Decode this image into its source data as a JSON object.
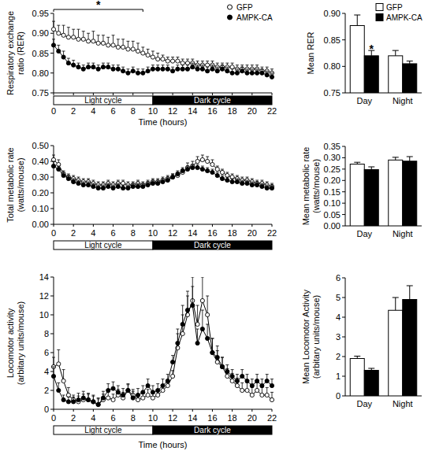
{
  "chart_data": [
    {
      "type": "line",
      "y_label": [
        "Respiratory exchange",
        "ratio (RER)"
      ],
      "x_label": "Time (hours)",
      "x": [
        0,
        0.5,
        1,
        1.5,
        2,
        2.5,
        3,
        3.5,
        4,
        4.5,
        5,
        5.5,
        6,
        6.5,
        7,
        7.5,
        8,
        8.5,
        9,
        9.5,
        10,
        10.5,
        11,
        11.5,
        12,
        12.5,
        13,
        13.5,
        14,
        14.5,
        15,
        15.5,
        16,
        16.5,
        17,
        17.5,
        18,
        18.5,
        19,
        19.5,
        20,
        20.5,
        21,
        21.5,
        22
      ],
      "xlim": [
        0,
        22
      ],
      "xticks": [
        0,
        2,
        4,
        6,
        8,
        10,
        12,
        14,
        16,
        18,
        20,
        22
      ],
      "ylim": [
        0.75,
        0.95
      ],
      "yticks": [
        0.75,
        {
          "value": 0.8,
          "label": "0.80"
        },
        0.85,
        {
          "value": 0.9,
          "label": "0.90"
        },
        0.95
      ],
      "legend": "top-right",
      "series": [
        {
          "name": "GFP",
          "color": "#000000",
          "marker": "circle-open",
          "values": [
            0.91,
            0.9,
            0.895,
            0.89,
            0.89,
            0.885,
            0.885,
            0.88,
            0.88,
            0.875,
            0.875,
            0.87,
            0.87,
            0.865,
            0.865,
            0.86,
            0.86,
            0.855,
            0.85,
            0.845,
            0.84,
            0.835,
            0.835,
            0.83,
            0.83,
            0.83,
            0.825,
            0.825,
            0.825,
            0.82,
            0.82,
            0.82,
            0.82,
            0.815,
            0.815,
            0.815,
            0.815,
            0.81,
            0.81,
            0.81,
            0.81,
            0.81,
            0.805,
            0.805,
            0.8
          ],
          "errors": [
            0.02,
            0.02,
            0.025,
            0.025,
            0.02,
            0.025,
            0.02,
            0.02,
            0.025,
            0.02,
            0.02,
            0.02,
            0.025,
            0.02,
            0.02,
            0.02,
            0.02,
            0.02,
            0.015,
            0.015,
            0.015,
            0.015,
            0.01,
            0.01,
            0.01,
            0.01,
            0.01,
            0.01,
            0.01,
            0.01,
            0.01,
            0.01,
            0.01,
            0.01,
            0.01,
            0.01,
            0.01,
            0.01,
            0.01,
            0.01,
            0.01,
            0.01,
            0.01,
            0.01,
            0.01
          ]
        },
        {
          "name": "AMPK-CA",
          "color": "#000000",
          "marker": "circle",
          "values": [
            0.87,
            0.855,
            0.84,
            0.825,
            0.82,
            0.815,
            0.81,
            0.815,
            0.815,
            0.81,
            0.815,
            0.815,
            0.81,
            0.81,
            0.805,
            0.8,
            0.805,
            0.8,
            0.8,
            0.805,
            0.81,
            0.81,
            0.81,
            0.81,
            0.805,
            0.81,
            0.81,
            0.81,
            0.815,
            0.81,
            0.81,
            0.805,
            0.81,
            0.805,
            0.81,
            0.805,
            0.8,
            0.8,
            0.805,
            0.8,
            0.8,
            0.8,
            0.8,
            0.795,
            0.79
          ],
          "errors": [
            0.015,
            0.015,
            0.015,
            0.012,
            0.012,
            0.01,
            0.01,
            0.01,
            0.01,
            0.01,
            0.01,
            0.01,
            0.01,
            0.01,
            0.01,
            0.01,
            0.01,
            0.01,
            0.01,
            0.01,
            0.01,
            0.01,
            0.01,
            0.01,
            0.01,
            0.01,
            0.01,
            0.01,
            0.01,
            0.01,
            0.01,
            0.01,
            0.01,
            0.01,
            0.01,
            0.01,
            0.01,
            0.01,
            0.01,
            0.01,
            0.01,
            0.01,
            0.01,
            0.01,
            0.01
          ]
        }
      ],
      "periods": [
        {
          "label": "Light cycle",
          "start": 0,
          "end": 10,
          "color": "#ffffff"
        },
        {
          "label": "Dark cycle",
          "start": 10,
          "end": 22,
          "color": "#000000"
        }
      ],
      "annotations": [
        {
          "text": "*",
          "x": [
            0,
            9
          ]
        }
      ]
    },
    {
      "type": "line",
      "y_label": [
        "Total metabolic rate",
        "(watts/mouse)"
      ],
      "x": [
        0,
        0.5,
        1,
        1.5,
        2,
        2.5,
        3,
        3.5,
        4,
        4.5,
        5,
        5.5,
        6,
        6.5,
        7,
        7.5,
        8,
        8.5,
        9,
        9.5,
        10,
        10.5,
        11,
        11.5,
        12,
        12.5,
        13,
        13.5,
        14,
        14.5,
        15,
        15.5,
        16,
        16.5,
        17,
        17.5,
        18,
        18.5,
        19,
        19.5,
        20,
        20.5,
        21,
        21.5,
        22
      ],
      "xlim": [
        0,
        22
      ],
      "xticks": [
        0,
        2,
        4,
        6,
        8,
        10,
        12,
        14,
        16,
        18,
        20,
        22
      ],
      "ylim": [
        0,
        0.5
      ],
      "yticks": [
        {
          "value": 0,
          "label": "0.00"
        },
        {
          "value": 0.1,
          "label": "0.10"
        },
        {
          "value": 0.2,
          "label": "0.20"
        },
        {
          "value": 0.3,
          "label": "0.30"
        },
        {
          "value": 0.4,
          "label": "0.40"
        },
        {
          "value": 0.5,
          "label": "0.50"
        }
      ],
      "series": [
        {
          "name": "GFP",
          "color": "#000000",
          "marker": "circle-open",
          "values": [
            0.41,
            0.38,
            0.32,
            0.3,
            0.29,
            0.28,
            0.27,
            0.27,
            0.26,
            0.25,
            0.25,
            0.26,
            0.25,
            0.26,
            0.26,
            0.25,
            0.25,
            0.26,
            0.25,
            0.26,
            0.27,
            0.27,
            0.28,
            0.29,
            0.3,
            0.31,
            0.33,
            0.36,
            0.37,
            0.4,
            0.41,
            0.4,
            0.38,
            0.35,
            0.33,
            0.31,
            0.3,
            0.29,
            0.28,
            0.28,
            0.27,
            0.26,
            0.26,
            0.25,
            0.24
          ],
          "errors": [
            0.03,
            0.03,
            0.02,
            0.02,
            0.02,
            0.02,
            0.02,
            0.02,
            0.02,
            0.02,
            0.02,
            0.02,
            0.02,
            0.02,
            0.02,
            0.02,
            0.02,
            0.02,
            0.02,
            0.02,
            0.02,
            0.02,
            0.02,
            0.02,
            0.02,
            0.02,
            0.02,
            0.03,
            0.03,
            0.03,
            0.03,
            0.03,
            0.03,
            0.02,
            0.02,
            0.02,
            0.02,
            0.02,
            0.02,
            0.02,
            0.02,
            0.02,
            0.02,
            0.02,
            0.02
          ]
        },
        {
          "name": "AMPK-CA",
          "color": "#000000",
          "marker": "circle",
          "values": [
            0.37,
            0.35,
            0.31,
            0.29,
            0.27,
            0.26,
            0.25,
            0.25,
            0.24,
            0.23,
            0.23,
            0.24,
            0.23,
            0.24,
            0.23,
            0.23,
            0.24,
            0.24,
            0.24,
            0.25,
            0.26,
            0.26,
            0.27,
            0.28,
            0.3,
            0.32,
            0.34,
            0.35,
            0.36,
            0.36,
            0.35,
            0.34,
            0.33,
            0.31,
            0.29,
            0.28,
            0.27,
            0.27,
            0.26,
            0.26,
            0.25,
            0.25,
            0.24,
            0.23,
            0.23
          ],
          "errors": [
            0.03,
            0.02,
            0.02,
            0.02,
            0.02,
            0.02,
            0.02,
            0.02,
            0.02,
            0.02,
            0.02,
            0.02,
            0.02,
            0.02,
            0.02,
            0.02,
            0.02,
            0.02,
            0.02,
            0.02,
            0.02,
            0.02,
            0.02,
            0.02,
            0.02,
            0.02,
            0.02,
            0.02,
            0.02,
            0.02,
            0.02,
            0.02,
            0.02,
            0.02,
            0.02,
            0.02,
            0.02,
            0.02,
            0.02,
            0.02,
            0.02,
            0.02,
            0.02,
            0.02,
            0.02
          ]
        }
      ],
      "periods": [
        {
          "label": "Light cycle",
          "start": 0,
          "end": 10,
          "color": "#ffffff"
        },
        {
          "label": "Dark cycle",
          "start": 10,
          "end": 22,
          "color": "#000000"
        }
      ]
    },
    {
      "type": "line",
      "y_label": [
        "Locomotor activity",
        "(arbitary units/mouse)"
      ],
      "x_label": "Time (hours)",
      "x": [
        0,
        0.5,
        1,
        1.5,
        2,
        2.5,
        3,
        3.5,
        4,
        4.5,
        5,
        5.5,
        6,
        6.5,
        7,
        7.5,
        8,
        8.5,
        9,
        9.5,
        10,
        10.5,
        11,
        11.5,
        12,
        12.5,
        13,
        13.5,
        14,
        14.5,
        15,
        15.5,
        16,
        16.5,
        17,
        17.5,
        18,
        18.5,
        19,
        19.5,
        20,
        20.5,
        21,
        21.5,
        22
      ],
      "xlim": [
        0,
        22
      ],
      "xticks": [
        0,
        2,
        4,
        6,
        8,
        10,
        12,
        14,
        16,
        18,
        20,
        22
      ],
      "ylim": [
        0,
        14
      ],
      "yticks": [
        0,
        2,
        4,
        6,
        8,
        10,
        12,
        14
      ],
      "series": [
        {
          "name": "GFP",
          "color": "#000000",
          "marker": "circle-open",
          "values": [
            4.5,
            4.8,
            3.0,
            1.5,
            1.0,
            0.8,
            1.0,
            1.0,
            0.8,
            0.5,
            1.0,
            1.2,
            1.0,
            1.5,
            1.2,
            2.0,
            1.5,
            1.0,
            1.2,
            1.5,
            1.2,
            1.5,
            2.0,
            2.5,
            3.5,
            6.5,
            8.0,
            10.0,
            11.5,
            9.0,
            11.5,
            10.0,
            6.0,
            5.0,
            4.5,
            3.5,
            3.0,
            2.5,
            2.0,
            2.0,
            1.5,
            2.0,
            1.5,
            1.5,
            1.0
          ],
          "errors": [
            1.0,
            1.5,
            1.2,
            0.8,
            0.5,
            0.6,
            0.6,
            0.6,
            0.6,
            0.6,
            0.6,
            0.6,
            0.6,
            0.6,
            0.6,
            0.6,
            0.6,
            0.6,
            0.6,
            0.6,
            0.6,
            0.6,
            0.6,
            0.6,
            0.6,
            1.5,
            2.0,
            2.0,
            2.5,
            2.0,
            2.5,
            2.0,
            1.5,
            1.2,
            1.0,
            0.8,
            0.8,
            0.8,
            0.8,
            0.8,
            0.8,
            0.8,
            0.8,
            0.8,
            0.8
          ]
        },
        {
          "name": "AMPK-CA",
          "color": "#000000",
          "marker": "circle",
          "values": [
            3.5,
            2.0,
            1.0,
            0.8,
            0.8,
            1.0,
            1.2,
            1.0,
            0.8,
            0.5,
            1.2,
            2.0,
            2.2,
            1.8,
            1.5,
            2.0,
            1.2,
            1.5,
            1.8,
            2.5,
            1.8,
            2.0,
            2.5,
            3.0,
            5.0,
            7.0,
            9.0,
            10.5,
            11.0,
            7.0,
            8.5,
            7.5,
            6.0,
            5.5,
            4.5,
            4.0,
            3.5,
            3.0,
            3.5,
            3.0,
            2.5,
            3.0,
            2.5,
            3.0,
            2.5
          ],
          "errors": [
            1.0,
            0.8,
            0.5,
            0.5,
            0.5,
            0.7,
            0.7,
            0.7,
            0.7,
            0.7,
            0.7,
            0.7,
            0.7,
            0.7,
            0.7,
            0.7,
            0.7,
            0.7,
            0.7,
            0.7,
            0.7,
            0.7,
            0.7,
            0.7,
            0.7,
            1.5,
            2.0,
            2.0,
            2.0,
            1.5,
            2.0,
            1.5,
            1.5,
            1.2,
            1.0,
            0.7,
            0.7,
            0.7,
            0.7,
            0.7,
            0.7,
            0.7,
            0.7,
            0.7,
            0.7
          ]
        }
      ],
      "periods": [
        {
          "label": "Light cycle",
          "start": 0,
          "end": 10,
          "color": "#ffffff"
        },
        {
          "label": "Dark cycle",
          "start": 10,
          "end": 22,
          "color": "#000000"
        }
      ]
    },
    {
      "type": "bar",
      "y_label": [
        "Mean RER"
      ],
      "categories": [
        "Day",
        "Night"
      ],
      "ylim": [
        0.75,
        0.9
      ],
      "yticks": [
        0.75,
        {
          "value": 0.8,
          "label": "0.80"
        },
        0.85,
        {
          "value": 0.9,
          "label": "0.90"
        }
      ],
      "legend": "top-right",
      "series": [
        {
          "name": "GFP",
          "color": "#ffffff",
          "values": [
            0.877,
            0.82
          ],
          "errors": [
            0.02,
            0.01
          ]
        },
        {
          "name": "AMPK-CA",
          "color": "#000000",
          "values": [
            0.82,
            0.805
          ],
          "errors": [
            0.01,
            0.005
          ]
        }
      ],
      "annotations": [
        {
          "text": "*",
          "category": "Day",
          "series": "AMPK-CA"
        }
      ]
    },
    {
      "type": "bar",
      "y_label": [
        "Mean metabolic rate",
        "(watts/mouse)"
      ],
      "categories": [
        "Day",
        "Night"
      ],
      "ylim": [
        0,
        0.35
      ],
      "yticks": [
        {
          "value": 0,
          "label": "0.00"
        },
        0.05,
        {
          "value": 0.1,
          "label": "0.10"
        },
        0.15,
        {
          "value": 0.2,
          "label": "0.20"
        },
        0.25,
        {
          "value": 0.3,
          "label": "0.30"
        },
        0.35
      ],
      "series": [
        {
          "name": "GFP",
          "color": "#ffffff",
          "values": [
            0.272,
            0.29
          ],
          "errors": [
            0.008,
            0.012
          ]
        },
        {
          "name": "AMPK-CA",
          "color": "#000000",
          "values": [
            0.248,
            0.285
          ],
          "errors": [
            0.012,
            0.02
          ]
        }
      ]
    },
    {
      "type": "bar",
      "y_label": [
        "Mean Locomotor Activity",
        "(arbitary units/mouse)"
      ],
      "categories": [
        "Day",
        "Night"
      ],
      "ylim": [
        0,
        6
      ],
      "yticks": [
        0,
        1,
        2,
        3,
        4,
        5,
        6
      ],
      "series": [
        {
          "name": "GFP",
          "color": "#ffffff",
          "values": [
            1.9,
            4.35
          ],
          "errors": [
            0.12,
            0.65
          ]
        },
        {
          "name": "AMPK-CA",
          "color": "#000000",
          "values": [
            1.3,
            4.9
          ],
          "errors": [
            0.1,
            0.7
          ]
        }
      ]
    }
  ]
}
